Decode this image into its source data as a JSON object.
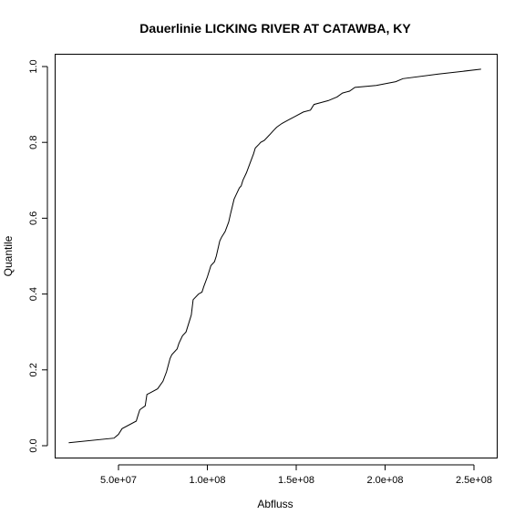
{
  "chart_data": {
    "type": "line",
    "title": "Dauerlinie LICKING RIVER AT CATAWBA, KY",
    "xlabel": "Abfluss",
    "ylabel": "Quantile",
    "xlim": [
      20000000,
      255000000
    ],
    "ylim": [
      0.0,
      1.0
    ],
    "x_ticks": [
      {
        "value": 50000000,
        "label": "5.0e+07"
      },
      {
        "value": 100000000,
        "label": "1.0e+08"
      },
      {
        "value": 150000000,
        "label": "1.5e+08"
      },
      {
        "value": 200000000,
        "label": "2.0e+08"
      },
      {
        "value": 250000000,
        "label": "2.5e+08"
      }
    ],
    "y_ticks": [
      {
        "value": 0.0,
        "label": "0.0"
      },
      {
        "value": 0.2,
        "label": "0.2"
      },
      {
        "value": 0.4,
        "label": "0.4"
      },
      {
        "value": 0.6,
        "label": "0.6"
      },
      {
        "value": 0.8,
        "label": "0.8"
      },
      {
        "value": 1.0,
        "label": "1.0"
      }
    ],
    "grid": false,
    "series": [
      {
        "x": [
          22000000,
          47500000,
          50000000,
          52000000,
          60000000,
          61000000,
          62000000,
          65000000,
          66000000,
          68000000,
          72000000,
          75000000,
          77000000,
          79000000,
          80000000,
          83000000,
          84000000,
          86000000,
          88000000,
          90000000,
          91000000,
          92000000,
          95000000,
          97000000,
          98000000,
          100000000,
          102000000,
          104000000,
          105000000,
          107000000,
          108000000,
          110000000,
          112000000,
          113000000,
          115000000,
          116000000,
          118000000,
          119000000,
          120000000,
          122000000,
          124000000,
          126000000,
          127000000,
          129000000,
          130000000,
          132000000,
          135000000,
          137000000,
          139000000,
          142000000,
          146000000,
          150000000,
          154000000,
          158000000,
          160000000,
          164000000,
          168000000,
          173000000,
          176000000,
          180000000,
          183000000,
          195000000,
          206000000,
          210000000,
          230000000,
          254000000
        ],
        "y": [
          0.008,
          0.02,
          0.03,
          0.045,
          0.065,
          0.08,
          0.095,
          0.105,
          0.135,
          0.14,
          0.15,
          0.17,
          0.195,
          0.23,
          0.24,
          0.255,
          0.27,
          0.29,
          0.3,
          0.33,
          0.345,
          0.385,
          0.4,
          0.405,
          0.42,
          0.445,
          0.475,
          0.485,
          0.5,
          0.54,
          0.55,
          0.565,
          0.59,
          0.61,
          0.65,
          0.66,
          0.68,
          0.685,
          0.7,
          0.72,
          0.745,
          0.77,
          0.785,
          0.795,
          0.8,
          0.805,
          0.82,
          0.83,
          0.84,
          0.85,
          0.86,
          0.87,
          0.88,
          0.885,
          0.9,
          0.905,
          0.91,
          0.92,
          0.93,
          0.935,
          0.945,
          0.95,
          0.96,
          0.968,
          0.98,
          0.993
        ]
      }
    ]
  }
}
